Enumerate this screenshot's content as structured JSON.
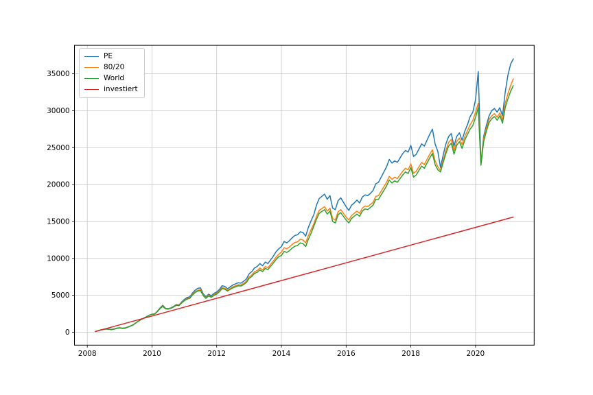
{
  "chart_data": {
    "type": "line",
    "title": "",
    "xlabel": "",
    "ylabel": "",
    "grid": true,
    "legend_position": "upper-left",
    "xlim": [
      2007.604,
      2021.812
    ],
    "ylim": [
      -1745,
      38845
    ],
    "x_ticks": [
      2008,
      2010,
      2012,
      2014,
      2016,
      2018,
      2020
    ],
    "y_ticks": [
      0,
      5000,
      10000,
      15000,
      20000,
      25000,
      30000,
      35000
    ],
    "x_start": 2008.25,
    "x_step_per_year": 12,
    "series": [
      {
        "name": "PE",
        "color": "#1f77b4",
        "y": [
          100,
          200,
          310,
          380,
          430,
          400,
          350,
          420,
          520,
          580,
          510,
          540,
          680,
          820,
          980,
          1250,
          1500,
          1720,
          1900,
          2100,
          2300,
          2450,
          2480,
          2850,
          3300,
          3650,
          3250,
          3200,
          3300,
          3500,
          3750,
          3700,
          4100,
          4450,
          4700,
          4800,
          5300,
          5700,
          5950,
          6000,
          5200,
          4800,
          5150,
          4950,
          5250,
          5450,
          5800,
          6300,
          6200,
          5900,
          6150,
          6400,
          6550,
          6700,
          6650,
          6900,
          7200,
          7900,
          8200,
          8700,
          8900,
          9300,
          9000,
          9500,
          9300,
          9800,
          10300,
          10900,
          11300,
          11600,
          12300,
          12100,
          12400,
          12800,
          13100,
          13200,
          13600,
          13500,
          13000,
          14200,
          15100,
          15900,
          17200,
          18100,
          18400,
          18700,
          18000,
          18500,
          16800,
          16600,
          17800,
          18200,
          17600,
          17000,
          16500,
          17200,
          17500,
          17900,
          17500,
          18300,
          18600,
          18500,
          18800,
          19200,
          20100,
          20300,
          21000,
          21700,
          22400,
          23400,
          22900,
          23200,
          23000,
          23600,
          24200,
          24600,
          24400,
          25300,
          23800,
          24100,
          24800,
          25500,
          25200,
          26000,
          26800,
          27500,
          25500,
          24500,
          22300,
          24000,
          25500,
          26500,
          26900,
          25200,
          26500,
          27000,
          26000,
          27200,
          28100,
          29200,
          29800,
          31500,
          35300,
          22900,
          26500,
          28000,
          29300,
          30000,
          30300,
          29800,
          30400,
          29300,
          32500,
          34800,
          36300,
          37000
        ]
      },
      {
        "name": "80/20",
        "color": "#ff7f0e",
        "y": [
          100,
          205,
          315,
          390,
          445,
          420,
          370,
          440,
          545,
          605,
          545,
          575,
          705,
          845,
          1005,
          1270,
          1520,
          1740,
          1915,
          2110,
          2300,
          2440,
          2470,
          2820,
          3230,
          3550,
          3200,
          3160,
          3260,
          3450,
          3680,
          3640,
          4010,
          4330,
          4560,
          4660,
          5120,
          5480,
          5700,
          5750,
          5050,
          4680,
          5000,
          4820,
          5100,
          5280,
          5600,
          6050,
          5960,
          5700,
          5930,
          6150,
          6300,
          6440,
          6400,
          6620,
          6900,
          7500,
          7750,
          8200,
          8350,
          8700,
          8450,
          8900,
          8750,
          9200,
          9650,
          10150,
          10550,
          10850,
          11450,
          11300,
          11550,
          11900,
          12150,
          12250,
          12600,
          12500,
          12100,
          13100,
          13900,
          14650,
          15700,
          16500,
          16750,
          17000,
          16400,
          16800,
          15400,
          15200,
          16300,
          16600,
          16100,
          15600,
          15200,
          15800,
          16100,
          16400,
          16100,
          16800,
          17100,
          17000,
          17300,
          17600,
          18400,
          18500,
          19100,
          19700,
          20300,
          21100,
          20700,
          21000,
          20800,
          21300,
          21800,
          22200,
          22000,
          22800,
          21500,
          21800,
          22400,
          23000,
          22700,
          23400,
          24100,
          24700,
          23200,
          22400,
          21900,
          23300,
          24600,
          25700,
          26100,
          24600,
          25800,
          26300,
          25400,
          26500,
          27300,
          28100,
          28700,
          29800,
          31000,
          22800,
          26200,
          27600,
          28800,
          29300,
          29600,
          29100,
          29700,
          28700,
          31000,
          32300,
          33400,
          34300
        ]
      },
      {
        "name": "World",
        "color": "#2ca02c",
        "y": [
          100,
          210,
          320,
          395,
          450,
          430,
          385,
          450,
          555,
          615,
          555,
          590,
          715,
          855,
          1015,
          1280,
          1530,
          1750,
          1920,
          2115,
          2300,
          2430,
          2460,
          2800,
          3200,
          3500,
          3160,
          3130,
          3230,
          3420,
          3640,
          3600,
          3960,
          4270,
          4490,
          4590,
          5030,
          5380,
          5590,
          5640,
          4960,
          4590,
          4900,
          4730,
          5000,
          5170,
          5480,
          5920,
          5830,
          5580,
          5800,
          6010,
          6160,
          6290,
          6250,
          6470,
          6740,
          7300,
          7540,
          7970,
          8110,
          8450,
          8210,
          8640,
          8490,
          8930,
          9360,
          9840,
          10230,
          10380,
          10950,
          10800,
          11050,
          11400,
          11650,
          11750,
          12100,
          12000,
          11600,
          12600,
          13400,
          14350,
          15300,
          16100,
          16350,
          16600,
          16000,
          16400,
          15000,
          14800,
          15900,
          16200,
          15700,
          15200,
          14800,
          15400,
          15700,
          16000,
          15700,
          16400,
          16700,
          16600,
          16900,
          17200,
          18000,
          18000,
          18600,
          19200,
          19800,
          20600,
          20200,
          20500,
          20300,
          20800,
          21300,
          21700,
          21500,
          22300,
          21000,
          21300,
          21900,
          22500,
          22200,
          22900,
          23600,
          24200,
          22700,
          22000,
          21700,
          23000,
          24200,
          25200,
          25600,
          24100,
          25300,
          25800,
          24900,
          26000,
          26800,
          27500,
          28000,
          29100,
          30400,
          22600,
          25800,
          27200,
          28400,
          28900,
          29200,
          28700,
          29300,
          28300,
          30400,
          31600,
          32600,
          33400
        ]
      }
    ],
    "invested_series": {
      "name": "investiert",
      "color": "#d62728",
      "x": [
        2008.25,
        2021.1667
      ],
      "y": [
        100,
        15600
      ]
    },
    "grid_color": "#c6c6c6",
    "spine_color": "#000000"
  },
  "legend": {
    "items": [
      {
        "label": "PE"
      },
      {
        "label": "80/20"
      },
      {
        "label": "World"
      },
      {
        "label": "investiert"
      }
    ]
  }
}
